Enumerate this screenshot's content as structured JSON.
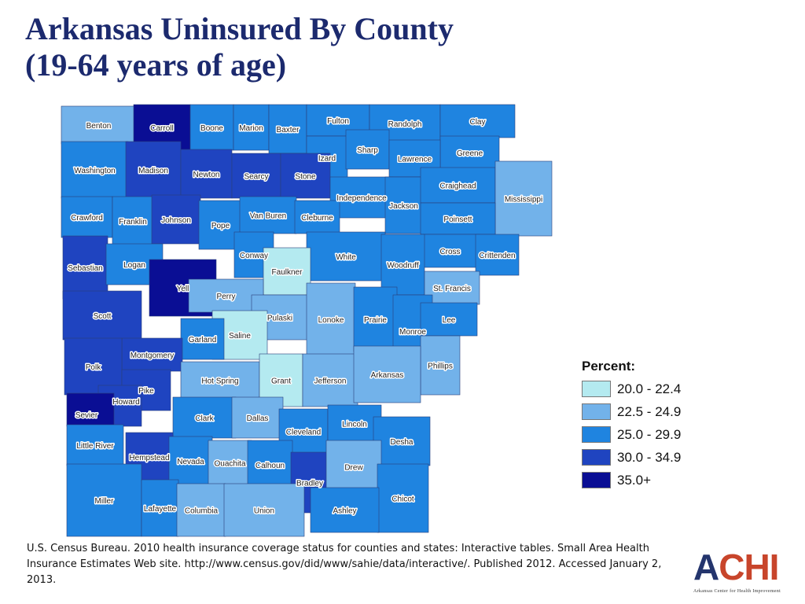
{
  "title": {
    "line1": "Arkansas Uninsured By County",
    "line2": "(19-64 years of age)"
  },
  "legend": {
    "title": "Percent:",
    "classes": [
      {
        "label": "20.0 - 22.4",
        "color": "#b4eaf0"
      },
      {
        "label": "22.5 - 24.9",
        "color": "#72b2ea"
      },
      {
        "label": "25.0 - 29.9",
        "color": "#1f84e0"
      },
      {
        "label": "30.0 - 34.9",
        "color": "#1f44c0"
      },
      {
        "label": "35.0+",
        "color": "#0a0e94"
      }
    ]
  },
  "counties": [
    {
      "name": "Benton",
      "class": 1
    },
    {
      "name": "Carroll",
      "class": 4
    },
    {
      "name": "Boone",
      "class": 2
    },
    {
      "name": "Marion",
      "class": 2
    },
    {
      "name": "Baxter",
      "class": 2
    },
    {
      "name": "Fulton",
      "class": 2
    },
    {
      "name": "Randolph",
      "class": 2
    },
    {
      "name": "Clay",
      "class": 2
    },
    {
      "name": "Izard",
      "class": 2
    },
    {
      "name": "Sharp",
      "class": 2
    },
    {
      "name": "Greene",
      "class": 2
    },
    {
      "name": "Lawrence",
      "class": 2
    },
    {
      "name": "Washington",
      "class": 2
    },
    {
      "name": "Madison",
      "class": 3
    },
    {
      "name": "Newton",
      "class": 3
    },
    {
      "name": "Searcy",
      "class": 3
    },
    {
      "name": "Stone",
      "class": 3
    },
    {
      "name": "Independence",
      "class": 2
    },
    {
      "name": "Jackson",
      "class": 2
    },
    {
      "name": "Craighead",
      "class": 2
    },
    {
      "name": "Mississippi",
      "class": 1
    },
    {
      "name": "Poinsett",
      "class": 2
    },
    {
      "name": "Crawford",
      "class": 2
    },
    {
      "name": "Franklin",
      "class": 2
    },
    {
      "name": "Johnson",
      "class": 3
    },
    {
      "name": "Pope",
      "class": 2
    },
    {
      "name": "Van Buren",
      "class": 2
    },
    {
      "name": "Cleburne",
      "class": 2
    },
    {
      "name": "White",
      "class": 2
    },
    {
      "name": "Cross",
      "class": 2
    },
    {
      "name": "Crittenden",
      "class": 2
    },
    {
      "name": "Conway",
      "class": 2
    },
    {
      "name": "Faulkner",
      "class": 0
    },
    {
      "name": "Sebastian",
      "class": 3
    },
    {
      "name": "Logan",
      "class": 2
    },
    {
      "name": "Yell",
      "class": 4
    },
    {
      "name": "Woodruff",
      "class": 2
    },
    {
      "name": "St. Francis",
      "class": 1
    },
    {
      "name": "Perry",
      "class": 1
    },
    {
      "name": "Scott",
      "class": 3
    },
    {
      "name": "Pulaski",
      "class": 1
    },
    {
      "name": "Lonoke",
      "class": 1
    },
    {
      "name": "Prairie",
      "class": 2
    },
    {
      "name": "Monroe",
      "class": 2
    },
    {
      "name": "Lee",
      "class": 2
    },
    {
      "name": "Saline",
      "class": 0
    },
    {
      "name": "Garland",
      "class": 2
    },
    {
      "name": "Montgomery",
      "class": 3
    },
    {
      "name": "Polk",
      "class": 3
    },
    {
      "name": "Phillips",
      "class": 1
    },
    {
      "name": "Hot Spring",
      "class": 1
    },
    {
      "name": "Grant",
      "class": 0
    },
    {
      "name": "Jefferson",
      "class": 1
    },
    {
      "name": "Arkansas",
      "class": 1
    },
    {
      "name": "Pike",
      "class": 3
    },
    {
      "name": "Howard",
      "class": 3
    },
    {
      "name": "Sevier",
      "class": 4
    },
    {
      "name": "Clark",
      "class": 2
    },
    {
      "name": "Dallas",
      "class": 1
    },
    {
      "name": "Cleveland",
      "class": 2
    },
    {
      "name": "Lincoln",
      "class": 2
    },
    {
      "name": "Desha",
      "class": 2
    },
    {
      "name": "Little River",
      "class": 2
    },
    {
      "name": "Hempstead",
      "class": 3
    },
    {
      "name": "Nevada",
      "class": 2
    },
    {
      "name": "Ouachita",
      "class": 1
    },
    {
      "name": "Calhoun",
      "class": 2
    },
    {
      "name": "Bradley",
      "class": 3
    },
    {
      "name": "Drew",
      "class": 1
    },
    {
      "name": "Chicot",
      "class": 2
    },
    {
      "name": "Miller",
      "class": 2
    },
    {
      "name": "Lafayette",
      "class": 2
    },
    {
      "name": "Columbia",
      "class": 1
    },
    {
      "name": "Union",
      "class": 1
    },
    {
      "name": "Ashley",
      "class": 2
    }
  ],
  "source": "U.S. Census Bureau. 2010 health insurance coverage status for counties and states: Interactive tables. Small Area Health Insurance Estimates Web site. http://www.census.gov/did/www/sahie/data/interactive/. Published 2012. Accessed January 2, 2013.",
  "logo": {
    "mark_a": "A",
    "mark_rest": "CHI",
    "subtitle": "Arkansas Center for Health Improvement"
  }
}
